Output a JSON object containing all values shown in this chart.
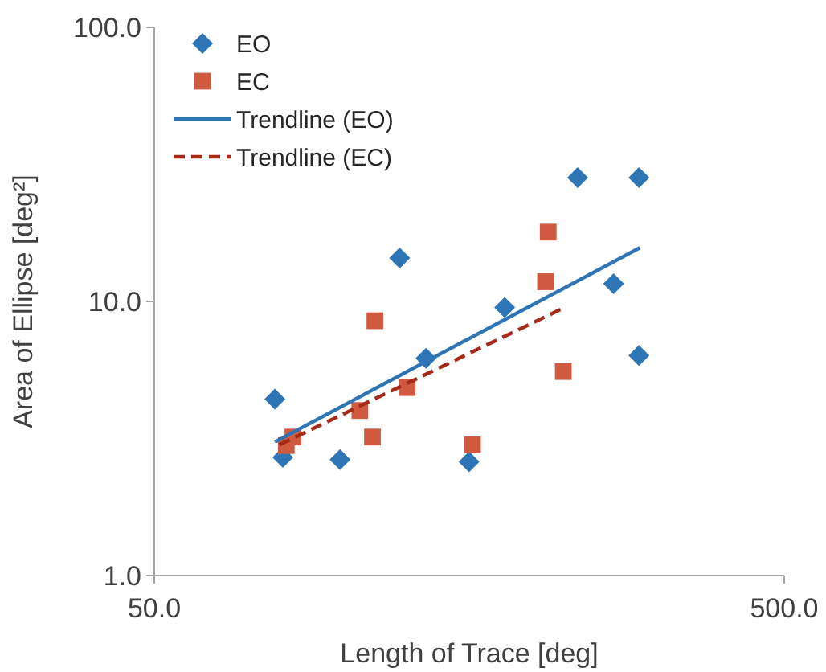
{
  "chart_data": {
    "type": "scatter",
    "xlabel": "Length of Trace [deg]",
    "ylabel": "Area of Ellipse [deg²]",
    "log": "xy",
    "xlim": [
      50,
      500
    ],
    "ylim": [
      1,
      100
    ],
    "xticks": [
      {
        "value": 50,
        "label": "50.0"
      },
      {
        "value": 500,
        "label": "500.0"
      }
    ],
    "yticks": [
      {
        "value": 1,
        "label": "1.0"
      },
      {
        "value": 10,
        "label": "10.0"
      },
      {
        "value": 100,
        "label": "100.0"
      }
    ],
    "grid": false,
    "legend": "top left",
    "series": [
      {
        "name": "EO",
        "color": "#2e75b6",
        "marker": "diamond",
        "x": [
          77.7,
          80,
          98.6,
          122.6,
          135,
          158,
          180,
          235,
          268,
          294,
          294
        ],
        "values": [
          4.4,
          2.7,
          2.65,
          14.4,
          6.2,
          2.6,
          9.5,
          28.3,
          11.6,
          28.3,
          6.35
        ]
      },
      {
        "name": "EC",
        "color": "#cf5a3f",
        "marker": "square",
        "x": [
          81,
          83,
          106,
          112,
          111,
          126,
          160,
          211,
          209,
          223
        ],
        "values": [
          2.98,
          3.2,
          4.0,
          8.5,
          3.2,
          4.85,
          3.0,
          17.9,
          11.8,
          5.55
        ]
      },
      {
        "name": "Trendline (EO)",
        "type": "line",
        "color": "#2e75b6",
        "line_style": "solid",
        "marker": "none",
        "x": [
          77.7,
          295
        ],
        "values": [
          3.07,
          15.7
        ]
      },
      {
        "name": "Trendline (EC)",
        "type": "line",
        "color": "#a52a1a",
        "line_style": "dashed",
        "marker": "none",
        "x": [
          79,
          224
        ],
        "values": [
          3.0,
          9.5
        ]
      }
    ]
  }
}
